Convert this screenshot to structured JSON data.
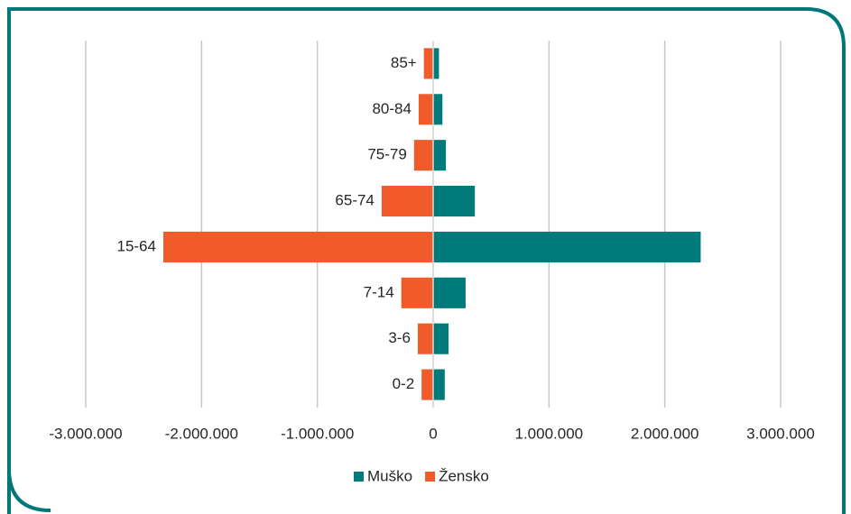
{
  "chart_data": {
    "type": "bar",
    "orientation": "horizontal",
    "categories": [
      "85+",
      "80-84",
      "75-79",
      "65-74",
      "15-64",
      "7-14",
      "3-6",
      "0-2"
    ],
    "series": [
      {
        "name": "Muško",
        "color": "#007a7a",
        "values": [
          50000,
          80000,
          110000,
          360000,
          2310000,
          280000,
          133000,
          100000
        ]
      },
      {
        "name": "Žensko",
        "color": "#f15a29",
        "values": [
          -80000,
          -125000,
          -165000,
          -445000,
          -2330000,
          -275000,
          -133000,
          -100000
        ]
      }
    ],
    "xlim": [
      -3000000,
      3000000
    ],
    "xticks": [
      {
        "value": -3000000,
        "label": "-3.000.000"
      },
      {
        "value": -2000000,
        "label": "-2.000.000"
      },
      {
        "value": -1000000,
        "label": "-1.000.000"
      },
      0,
      {
        "value": 1000000,
        "label": "1.000.000"
      },
      {
        "value": 2000000,
        "label": "2.000.000"
      },
      {
        "value": 3000000,
        "label": "3.000.000"
      }
    ],
    "grid": true,
    "legend": "bottom"
  }
}
